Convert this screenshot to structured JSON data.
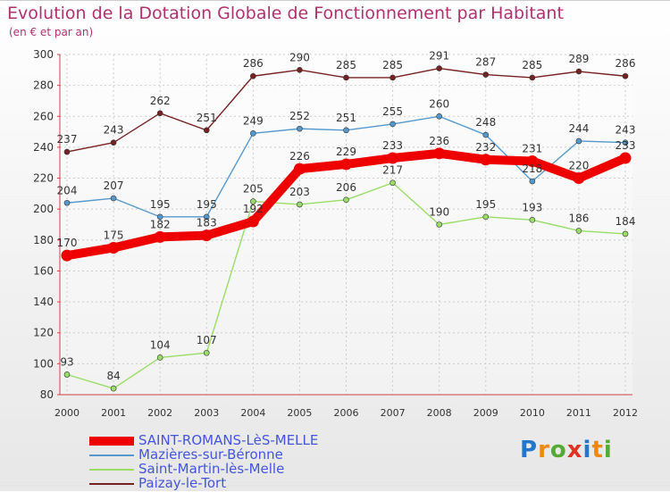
{
  "chart_data": {
    "type": "line",
    "title": "Evolution de la Dotation Globale de Fonctionnement par Habitant",
    "subtitle": "(en € et par an)",
    "xlabel": "",
    "ylabel": "",
    "ylim": [
      80,
      300
    ],
    "yticks": [
      80,
      100,
      120,
      140,
      160,
      180,
      200,
      220,
      240,
      260,
      280,
      300
    ],
    "grid": true,
    "legend_position": "bottom-left",
    "categories": [
      "2000",
      "2001",
      "2002",
      "2003",
      "2004",
      "2005",
      "2006",
      "2007",
      "2008",
      "2009",
      "2010",
      "2011",
      "2012"
    ],
    "series": [
      {
        "name": "SAINT-ROMANS-LèS-MELLE",
        "color": "#ee0000",
        "emphasis": true,
        "values": [
          170,
          175,
          182,
          183,
          192,
          226,
          229,
          233,
          236,
          232,
          231,
          220,
          233
        ],
        "labels": [
          "170",
          "175",
          "182",
          "183",
          "192",
          "226",
          "229",
          "233",
          "236",
          "232",
          "231",
          "220",
          "233"
        ]
      },
      {
        "name": "Mazières-sur-Béronne",
        "color": "#5599cc",
        "emphasis": false,
        "values": [
          204,
          207,
          195,
          195,
          249,
          252,
          251,
          255,
          260,
          248,
          218,
          244,
          243
        ],
        "labels": [
          "204",
          "207",
          "195",
          "195",
          "249",
          "252",
          "251",
          "255",
          "260",
          "248",
          "218",
          "244",
          "243"
        ]
      },
      {
        "name": "Saint-Martin-lès-Melle",
        "color": "#99dd66",
        "emphasis": false,
        "values": [
          93,
          84,
          104,
          107,
          205,
          203,
          206,
          217,
          190,
          195,
          193,
          186,
          184
        ],
        "labels": [
          "93",
          "84",
          "104",
          "107",
          "205",
          "203",
          "206",
          "217",
          "190",
          "195",
          "193",
          "186",
          "184"
        ]
      },
      {
        "name": "Paizay-le-Tort",
        "color": "#772222",
        "emphasis": false,
        "values": [
          237,
          243,
          262,
          251,
          286,
          290,
          285,
          285,
          291,
          287,
          285,
          289,
          286
        ],
        "labels": [
          "237",
          "243",
          "262",
          "251",
          "286",
          "290",
          "285",
          "285",
          "291",
          "287",
          "285",
          "289",
          "286"
        ]
      }
    ]
  },
  "branding": {
    "logo_letters": [
      "P",
      "r",
      "o",
      "x",
      "i",
      "t",
      "i"
    ],
    "logo_colors": [
      "#2277cc",
      "#ee8811",
      "#55aa33",
      "#dd3322",
      "#2277cc",
      "#ee8811",
      "#55aa33"
    ]
  }
}
